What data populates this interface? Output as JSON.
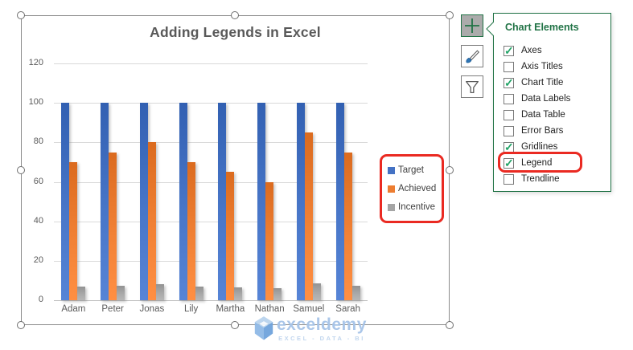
{
  "chart_data": {
    "type": "bar",
    "title": "Adding Legends in Excel",
    "categories": [
      "Adam",
      "Peter",
      "Jonas",
      "Lily",
      "Martha",
      "Nathan",
      "Samuel",
      "Sarah"
    ],
    "series": [
      {
        "name": "Target",
        "color": "#4472C4",
        "values": [
          100,
          100,
          100,
          100,
          100,
          100,
          100,
          100
        ]
      },
      {
        "name": "Achieved",
        "color": "#ED7D31",
        "values": [
          70,
          75,
          80,
          70,
          65,
          60,
          85,
          75
        ]
      },
      {
        "name": "Incentive",
        "color": "#A5A5A5",
        "values": [
          7,
          7.5,
          8,
          7,
          6.5,
          6,
          8.5,
          7.5
        ]
      }
    ],
    "ylim": [
      0,
      120
    ],
    "yticks": [
      0,
      20,
      40,
      60,
      80,
      100,
      120
    ],
    "gridlines": true,
    "legend_position": "right",
    "legend_highlight_color": "#EA2A22"
  },
  "toolbar": {
    "buttons": [
      {
        "label": "Chart Elements",
        "icon": "plus-icon",
        "selected": true
      },
      {
        "label": "Chart Styles",
        "icon": "brush-icon",
        "selected": false
      },
      {
        "label": "Chart Filters",
        "icon": "funnel-icon",
        "selected": false
      }
    ]
  },
  "chart_elements_panel": {
    "title": "Chart Elements",
    "accent_color": "#217346",
    "check_color": "#21A366",
    "items": [
      {
        "label": "Axes",
        "checked": true,
        "highlighted": false
      },
      {
        "label": "Axis Titles",
        "checked": false,
        "highlighted": false
      },
      {
        "label": "Chart Title",
        "checked": true,
        "highlighted": false
      },
      {
        "label": "Data Labels",
        "checked": false,
        "highlighted": false
      },
      {
        "label": "Data Table",
        "checked": false,
        "highlighted": false
      },
      {
        "label": "Error Bars",
        "checked": false,
        "highlighted": false
      },
      {
        "label": "Gridlines",
        "checked": true,
        "highlighted": false
      },
      {
        "label": "Legend",
        "checked": true,
        "highlighted": true
      },
      {
        "label": "Trendline",
        "checked": false,
        "highlighted": false
      }
    ]
  },
  "watermark": {
    "brand": "exceldemy",
    "tagline": "EXCEL - DATA - BI",
    "color": "#A6C4E8"
  }
}
